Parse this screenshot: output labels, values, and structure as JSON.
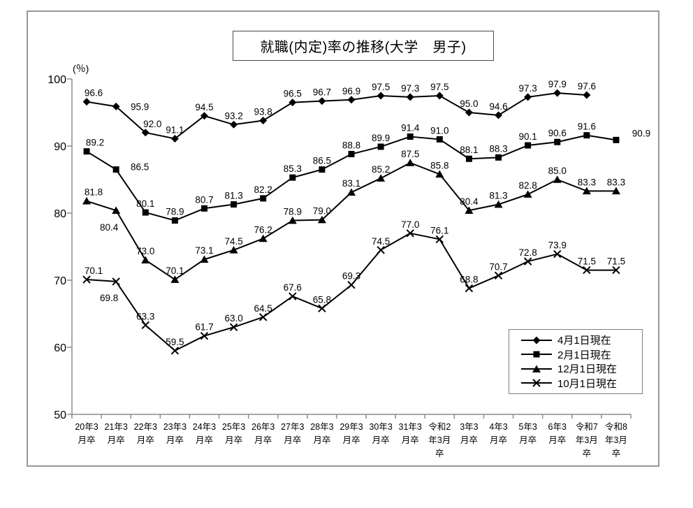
{
  "title": "就職(内定)率の推移(大学　男子)",
  "y_axis": {
    "unit_label": "(％)",
    "min": 50,
    "max": 100
  },
  "legend": {
    "position": "inside-bottom-right",
    "items": [
      {
        "label": "4月1日現在",
        "marker": "diamond"
      },
      {
        "label": "2月1日現在",
        "marker": "square"
      },
      {
        "label": "12月1日現在",
        "marker": "triangle"
      },
      {
        "label": "10月1日現在",
        "marker": "x"
      }
    ]
  },
  "chart_data": {
    "type": "line",
    "title": "就職(内定)率の推移(大学　男子)",
    "xlabel": "",
    "ylabel": "(％)",
    "ylim": [
      50,
      100
    ],
    "y_ticks": [
      50,
      60,
      70,
      80,
      90,
      100
    ],
    "grid": false,
    "line_color": "#000000",
    "legend_position": "inside-bottom-right",
    "categories": [
      "20年3月卒",
      "21年3月卒",
      "22年3月卒",
      "23年3月卒",
      "24年3月卒",
      "25年3月卒",
      "26年3月卒",
      "27年3月卒",
      "28年3月卒",
      "29年3月卒",
      "30年3月卒",
      "31年3月卒",
      "令和2年3月卒",
      "3年3月卒",
      "4年3月卒",
      "5年3月卒",
      "6年3月卒",
      "令和7年3月卒",
      "令和8年3月卒"
    ],
    "category_label_lines": [
      [
        "20年3",
        "月卒"
      ],
      [
        "21年3",
        "月卒"
      ],
      [
        "22年3",
        "月卒"
      ],
      [
        "23年3",
        "月卒"
      ],
      [
        "24年3",
        "月卒"
      ],
      [
        "25年3",
        "月卒"
      ],
      [
        "26年3",
        "月卒"
      ],
      [
        "27年3",
        "月卒"
      ],
      [
        "28年3",
        "月卒"
      ],
      [
        "29年3",
        "月卒"
      ],
      [
        "30年3",
        "月卒"
      ],
      [
        "31年3",
        "月卒"
      ],
      [
        "令和2",
        "年3月",
        "卒"
      ],
      [
        "3年3",
        "月卒"
      ],
      [
        "4年3",
        "月卒"
      ],
      [
        "5年3",
        "月卒"
      ],
      [
        "6年3",
        "月卒"
      ],
      [
        "令和7",
        "年3月",
        "卒"
      ],
      [
        "令和8",
        "年3月",
        "卒"
      ]
    ],
    "series": [
      {
        "name": "4月1日現在",
        "marker": "diamond",
        "values": [
          96.6,
          95.9,
          92.0,
          91.1,
          94.5,
          93.2,
          93.8,
          96.5,
          96.7,
          96.9,
          97.5,
          97.3,
          97.5,
          95.0,
          94.6,
          97.3,
          97.9,
          97.6,
          null
        ]
      },
      {
        "name": "2月1日現在",
        "marker": "square",
        "values": [
          89.2,
          86.5,
          80.1,
          78.9,
          80.7,
          81.3,
          82.2,
          85.3,
          86.5,
          88.8,
          89.9,
          91.4,
          91.0,
          88.1,
          88.3,
          90.1,
          90.6,
          91.6,
          90.9
        ]
      },
      {
        "name": "12月1日現在",
        "marker": "triangle",
        "values": [
          81.8,
          80.4,
          73.0,
          70.1,
          73.1,
          74.5,
          76.2,
          78.9,
          79.0,
          83.1,
          85.2,
          87.5,
          85.8,
          80.4,
          81.3,
          82.8,
          85.0,
          83.3,
          83.3
        ]
      },
      {
        "name": "10月1日現在",
        "marker": "x",
        "values": [
          70.1,
          69.8,
          63.3,
          59.5,
          61.7,
          63.0,
          64.5,
          67.6,
          65.8,
          69.3,
          74.5,
          77.0,
          76.1,
          68.8,
          70.7,
          72.8,
          73.9,
          71.5,
          71.5
        ]
      }
    ],
    "label_offsets": {
      "0.0": [
        10,
        0
      ],
      "0.1": [
        34,
        13
      ],
      "0.2": [
        10,
        0
      ],
      "1.0": [
        12,
        0
      ],
      "1.1": [
        34,
        9
      ],
      "1.18": [
        36,
        3
      ],
      "2.0": [
        10,
        0
      ],
      "2.1": [
        -10,
        37
      ],
      "3.0": [
        10,
        0
      ],
      "3.1": [
        -10,
        36
      ]
    }
  }
}
